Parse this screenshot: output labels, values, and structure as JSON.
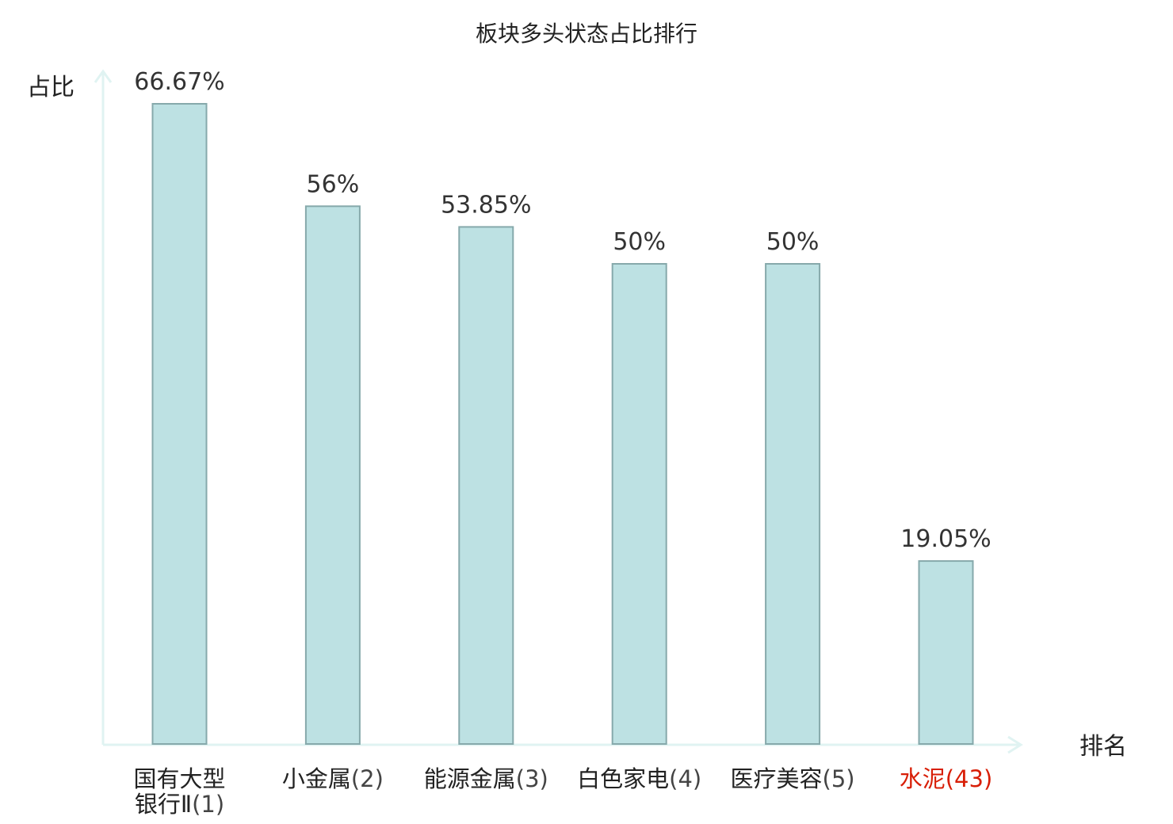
{
  "chart_data": {
    "type": "bar",
    "title": "板块多头状态占比排行",
    "ylabel": "占比",
    "xlabel": "排名",
    "categories": [
      {
        "name": "国有大型银行Ⅱ",
        "rank": "(1)",
        "lines": [
          "国有大型",
          "银行Ⅱ"
        ]
      },
      {
        "name": "小金属",
        "rank": "(2)",
        "lines": [
          "小金属"
        ]
      },
      {
        "name": "能源金属",
        "rank": "(3)",
        "lines": [
          "能源金属"
        ]
      },
      {
        "name": "白色家电",
        "rank": "(4)",
        "lines": [
          "白色家电"
        ]
      },
      {
        "name": "医疗美容",
        "rank": "(5)",
        "lines": [
          "医疗美容"
        ]
      },
      {
        "name": "水泥",
        "rank": "(43)",
        "lines": [
          "水泥"
        ]
      }
    ],
    "values": [
      66.67,
      56,
      53.85,
      50,
      50,
      19.05
    ],
    "value_labels": [
      "66.67%",
      "56%",
      "53.85%",
      "50%",
      "50%",
      "19.05%"
    ],
    "highlight_index": 5,
    "ylim": [
      0,
      70
    ],
    "grid": false,
    "colors": {
      "bar_fill": "#bde1e3",
      "bar_stroke": "#86a9ab",
      "axis": "#e0f3f2",
      "highlight_text": "#d81e06"
    }
  }
}
